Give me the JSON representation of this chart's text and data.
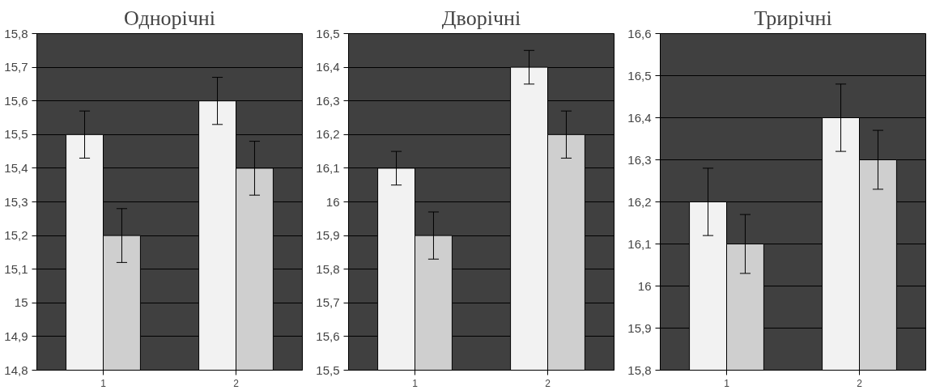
{
  "chart_data": [
    {
      "type": "bar",
      "title": "Однорічні",
      "categories": [
        "1",
        "2"
      ],
      "series": [
        {
          "color": "#f2f2f2",
          "values": [
            15.5,
            15.6
          ],
          "errors": [
            0.07,
            0.07
          ]
        },
        {
          "color": "#cfcfcf",
          "values": [
            15.2,
            15.4
          ],
          "errors": [
            0.08,
            0.08
          ]
        }
      ],
      "ylim": [
        14.8,
        15.8
      ],
      "yticks": [
        {
          "value": 14.8,
          "label": "14,8"
        },
        {
          "value": 14.9,
          "label": "14,9"
        },
        15,
        {
          "value": 15.1,
          "label": "15,1"
        },
        {
          "value": 15.2,
          "label": "15,2"
        },
        {
          "value": 15.3,
          "label": "15,3"
        },
        {
          "value": 15.4,
          "label": "15,4"
        },
        {
          "value": 15.5,
          "label": "15,5"
        },
        {
          "value": 15.6,
          "label": "15,6"
        },
        {
          "value": 15.7,
          "label": "15,7"
        },
        {
          "value": 15.8,
          "label": "15,8"
        }
      ],
      "grid": "y"
    },
    {
      "type": "bar",
      "title": "Дворічні",
      "categories": [
        "1",
        "2"
      ],
      "series": [
        {
          "color": "#f2f2f2",
          "values": [
            16.1,
            16.4
          ],
          "errors": [
            0.05,
            0.05
          ]
        },
        {
          "color": "#cfcfcf",
          "values": [
            15.9,
            16.2
          ],
          "errors": [
            0.07,
            0.07
          ]
        }
      ],
      "ylim": [
        15.5,
        16.5
      ],
      "yticks": [
        {
          "value": 15.5,
          "label": "15,5"
        },
        {
          "value": 15.6,
          "label": "15,6"
        },
        {
          "value": 15.7,
          "label": "15,7"
        },
        {
          "value": 15.8,
          "label": "15,8"
        },
        {
          "value": 15.9,
          "label": "15,9"
        },
        16,
        {
          "value": 16.1,
          "label": "16,1"
        },
        {
          "value": 16.2,
          "label": "16,2"
        },
        {
          "value": 16.3,
          "label": "16,3"
        },
        {
          "value": 16.4,
          "label": "16,4"
        },
        {
          "value": 16.5,
          "label": "16,5"
        }
      ],
      "grid": "y"
    },
    {
      "type": "bar",
      "title": "Трирічні",
      "categories": [
        "1",
        "2"
      ],
      "series": [
        {
          "color": "#f2f2f2",
          "values": [
            16.2,
            16.4
          ],
          "errors": [
            0.08,
            0.08
          ]
        },
        {
          "color": "#cfcfcf",
          "values": [
            16.1,
            16.3
          ],
          "errors": [
            0.07,
            0.07
          ]
        }
      ],
      "ylim": [
        15.8,
        16.6
      ],
      "yticks": [
        {
          "value": 15.8,
          "label": "15,8"
        },
        {
          "value": 15.9,
          "label": "15,9"
        },
        16,
        {
          "value": 16.1,
          "label": "16,1"
        },
        {
          "value": 16.2,
          "label": "16,2"
        },
        {
          "value": 16.3,
          "label": "16,3"
        },
        {
          "value": 16.4,
          "label": "16,4"
        },
        {
          "value": 16.5,
          "label": "16,5"
        },
        {
          "value": 16.6,
          "label": "16,6"
        }
      ],
      "grid": "y"
    }
  ]
}
